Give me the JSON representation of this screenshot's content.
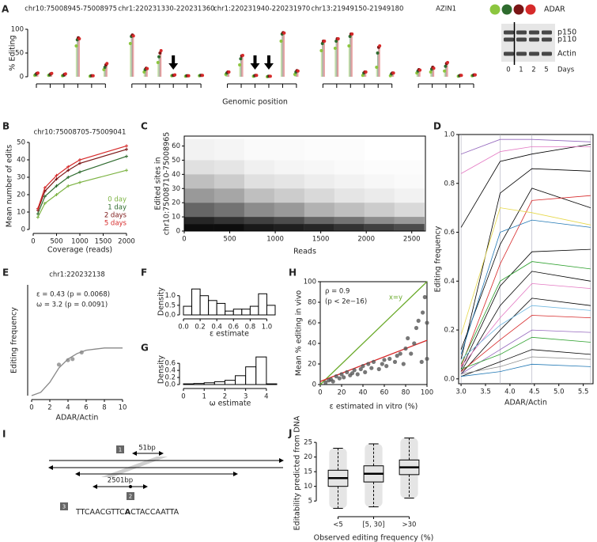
{
  "chart_data": [
    {
      "type": "lollipop",
      "panel": "A",
      "ylabel": "% Editing",
      "xlabel": "Genomic position",
      "legend_title": "ADAR",
      "colors": [
        "#8cc63f",
        "#2e6b2e",
        "#7a1515",
        "#d62a2a"
      ],
      "ylim": [
        0,
        100
      ],
      "yticks": [
        0,
        50,
        100
      ],
      "regions": [
        {
          "title": "chr10:75008945-75008975",
          "values": [
            [
              3,
              5,
              7,
              8
            ],
            [
              3,
              4,
              6,
              7
            ],
            [
              2,
              3,
              5,
              6
            ],
            [
              65,
              78,
              82,
              80
            ],
            [
              1,
              2,
              2,
              2
            ],
            [
              15,
              20,
              25,
              28
            ]
          ]
        },
        {
          "title": "chr1:220231330-220231360",
          "values": [
            [
              70,
              85,
              88,
              86
            ],
            [
              10,
              15,
              18,
              17
            ],
            [
              30,
              42,
              50,
              55
            ],
            [
              2,
              3,
              3,
              4
            ],
            [
              1,
              2,
              2,
              2
            ],
            [
              2,
              3,
              3,
              3
            ]
          ]
        },
        {
          "title": "chr1:220231940-220231970",
          "values": [
            [
              5,
              8,
              10,
              10
            ],
            [
              25,
              38,
              44,
              45
            ],
            [
              1,
              2,
              3,
              3
            ],
            [
              0,
              1,
              1,
              1
            ],
            [
              75,
              90,
              93,
              92
            ],
            [
              5,
              10,
              13,
              12
            ]
          ]
        },
        {
          "title": "chr13:21949150-21949180",
          "values": [
            [
              55,
              70,
              75,
              75
            ],
            [
              60,
              75,
              80,
              80
            ],
            [
              65,
              85,
              90,
              90
            ],
            [
              3,
              8,
              10,
              10
            ],
            [
              20,
              50,
              62,
              65
            ],
            [
              2,
              6,
              8,
              8
            ]
          ]
        },
        {
          "title": "AZIN1",
          "values": [
            [
              8,
              12,
              15,
              14
            ],
            [
              10,
              16,
              20,
              18
            ],
            [
              12,
              22,
              28,
              30
            ],
            [
              1,
              2,
              3,
              3
            ],
            [
              2,
              3,
              4,
              4
            ]
          ]
        }
      ]
    },
    {
      "type": "line",
      "panel": "B",
      "title": "chr10:75008705-75009041",
      "xlabel": "Coverage (reads)",
      "ylabel": "Mean number of edits",
      "x": [
        100,
        250,
        500,
        750,
        1000,
        2000
      ],
      "xlim": [
        0,
        2000
      ],
      "xticks": [
        0,
        500,
        1000,
        1500,
        2000
      ],
      "ylim": [
        0,
        50
      ],
      "yticks": [
        0,
        10,
        20,
        30,
        40,
        50
      ],
      "markers": true,
      "legend": "bottom-right",
      "series": [
        {
          "name": "0 day",
          "color": "#7cb342",
          "values": [
            7,
            15,
            20,
            25,
            27,
            34
          ]
        },
        {
          "name": "1 day",
          "color": "#2e6b2e",
          "values": [
            9,
            19,
            25,
            30,
            33,
            42
          ]
        },
        {
          "name": "2 days",
          "color": "#7a1515",
          "values": [
            11,
            22,
            29,
            34,
            38,
            46
          ]
        },
        {
          "name": "5 days",
          "color": "#d62a2a",
          "values": [
            12,
            24,
            31,
            36,
            40,
            48
          ]
        }
      ]
    },
    {
      "type": "heatmap",
      "panel": "C",
      "xlabel": "Reads",
      "ylabel": [
        "Edited sites in",
        "chr10:75008710-75008965"
      ],
      "frame": true,
      "xlim": [
        0,
        2650
      ],
      "xticks": [
        0,
        500,
        1000,
        1500,
        2000,
        2500
      ],
      "ylim": [
        0,
        67
      ],
      "yticks": [
        0,
        10,
        20,
        30,
        40,
        50,
        60
      ],
      "xbins": [
        0,
        330,
        660,
        990,
        1320,
        1650,
        1980,
        2310,
        2640
      ],
      "ybins": [
        0,
        5,
        10,
        20,
        30,
        40,
        50,
        65
      ],
      "values": [
        [
          0.95,
          0.95,
          0.9,
          0.88,
          0.85,
          0.8,
          0.75,
          0.7
        ],
        [
          0.85,
          0.8,
          0.75,
          0.7,
          0.6,
          0.55,
          0.45,
          0.4
        ],
        [
          0.6,
          0.55,
          0.45,
          0.4,
          0.3,
          0.25,
          0.2,
          0.15
        ],
        [
          0.4,
          0.35,
          0.25,
          0.2,
          0.15,
          0.1,
          0.08,
          0.05
        ],
        [
          0.25,
          0.2,
          0.12,
          0.1,
          0.07,
          0.05,
          0.03,
          0.02
        ],
        [
          0.12,
          0.1,
          0.06,
          0.04,
          0.03,
          0.02,
          0.01,
          0.01
        ],
        [
          0.05,
          0.04,
          0.02,
          0.02,
          0.01,
          0.01,
          0,
          0
        ]
      ]
    },
    {
      "type": "line",
      "panel": "D",
      "xlabel": "ADAR/Actin",
      "ylabel": "Editing frequency",
      "frame": true,
      "grid": "x",
      "x": [
        3.0,
        3.8,
        4.45,
        5.65
      ],
      "xlim": [
        2.95,
        5.7
      ],
      "xticks": [
        {
          "value": 3,
          "label": "3.0"
        },
        3.5,
        {
          "value": 4,
          "label": "4.0"
        },
        4.5,
        {
          "value": 5,
          "label": "5.0"
        },
        5.5
      ],
      "ylim": [
        -0.02,
        1.0
      ],
      "yticks": [
        {
          "value": 0,
          "label": "0.0"
        },
        0.2,
        0.4,
        0.6,
        0.8,
        {
          "value": 1,
          "label": "1.0"
        }
      ],
      "series": [
        {
          "color": "#000000",
          "values": [
            0.62,
            0.89,
            0.92,
            0.96
          ]
        },
        {
          "color": "#000000",
          "values": [
            0.08,
            0.76,
            0.86,
            0.85
          ]
        },
        {
          "color": "#e377c2",
          "values": [
            0.84,
            0.93,
            0.95,
            0.95
          ]
        },
        {
          "color": "#9467bd",
          "values": [
            0.92,
            0.98,
            0.98,
            0.97
          ]
        },
        {
          "color": "#000000",
          "values": [
            0.12,
            0.55,
            0.78,
            0.7
          ]
        },
        {
          "color": "#d62728",
          "values": [
            0.05,
            0.47,
            0.73,
            0.75
          ]
        },
        {
          "color": "#e6d84a",
          "values": [
            0.18,
            0.7,
            0.68,
            0.63
          ]
        },
        {
          "color": "#1f77b4",
          "values": [
            0.1,
            0.6,
            0.65,
            0.62
          ]
        },
        {
          "color": "#000000",
          "values": [
            0.04,
            0.38,
            0.52,
            0.53
          ]
        },
        {
          "color": "#2ca02c",
          "values": [
            0.06,
            0.4,
            0.48,
            0.45
          ]
        },
        {
          "color": "#000000",
          "values": [
            0.03,
            0.3,
            0.44,
            0.4
          ]
        },
        {
          "color": "#e377c2",
          "values": [
            0.05,
            0.25,
            0.39,
            0.37
          ]
        },
        {
          "color": "#000000",
          "values": [
            0.02,
            0.2,
            0.33,
            0.3
          ]
        },
        {
          "color": "#6fb7e0",
          "values": [
            0.08,
            0.22,
            0.3,
            0.28
          ]
        },
        {
          "color": "#d62728",
          "values": [
            0.03,
            0.16,
            0.26,
            0.25
          ]
        },
        {
          "color": "#9467bd",
          "values": [
            0.02,
            0.12,
            0.2,
            0.19
          ]
        },
        {
          "color": "#2ca02c",
          "values": [
            0.04,
            0.1,
            0.17,
            0.15
          ]
        },
        {
          "color": "#000000",
          "values": [
            0.01,
            0.07,
            0.12,
            0.1
          ]
        },
        {
          "color": "#888888",
          "values": [
            0.02,
            0.05,
            0.09,
            0.08
          ]
        },
        {
          "color": "#1f77b4",
          "values": [
            0.01,
            0.03,
            0.06,
            0.05
          ]
        }
      ]
    },
    {
      "type": "scatter",
      "panel": "E",
      "title": "chr1:220232138",
      "xlabel": "ADAR/Actin",
      "ylabel": "Editing frequency",
      "annotations": [
        "ε = 0.43 (p = 0.0068)",
        "ω = 3.2 (p = 0.0091)"
      ],
      "xlim": [
        0,
        10
      ],
      "xticks": [
        0,
        2,
        4,
        6,
        8,
        10
      ],
      "ylim": [
        0,
        1
      ],
      "color": "#888888",
      "x": [
        3,
        4,
        4.5,
        5.5
      ],
      "values": [
        0.28,
        0.32,
        0.33,
        0.39
      ],
      "lines": [
        {
          "color": "#888888",
          "x": [
            0,
            1,
            2,
            3,
            4,
            5,
            6,
            7,
            8,
            9,
            10
          ],
          "values": [
            0,
            0.03,
            0.12,
            0.25,
            0.33,
            0.38,
            0.41,
            0.42,
            0.43,
            0.43,
            0.43
          ]
        }
      ]
    },
    {
      "type": "histogram",
      "panel": "F",
      "xlabel": "ε estimate",
      "ylabel": "Density",
      "bins": [
        0,
        0.1,
        0.2,
        0.3,
        0.4,
        0.5,
        0.6,
        0.7,
        0.8,
        0.9,
        1.0,
        1.1
      ],
      "values": [
        0.45,
        1.35,
        1.0,
        0.75,
        0.6,
        0.2,
        0.3,
        0.3,
        0.45,
        1.1,
        0.5
      ],
      "xlim": [
        0,
        1.1
      ],
      "xticks": [
        {
          "value": 0,
          "label": "0.0"
        },
        0.2,
        0.4,
        0.6,
        0.8,
        {
          "value": 1,
          "label": "1.0"
        }
      ],
      "ylim": [
        0,
        1.4
      ],
      "yticks": [
        {
          "value": 0,
          "label": "0.0"
        },
        0.5,
        {
          "value": 1,
          "label": "1.0"
        }
      ]
    },
    {
      "type": "histogram",
      "panel": "G",
      "xlabel": "ω estimate",
      "ylabel": "Density",
      "bins": [
        0,
        0.5,
        1,
        1.5,
        2,
        2.5,
        3,
        3.5,
        4,
        4.5
      ],
      "values": [
        0.02,
        0.03,
        0.05,
        0.08,
        0.12,
        0.25,
        0.5,
        0.78,
        0.02
      ],
      "xlim": [
        0,
        4.5
      ],
      "xticks": [
        0,
        1,
        2,
        3,
        4
      ],
      "ylim": [
        0,
        0.85
      ],
      "yticks": [
        {
          "value": 0,
          "label": "0.0"
        },
        0.2,
        0.4,
        0.6
      ]
    },
    {
      "type": "scatter",
      "panel": "H",
      "xlabel": "ε estimated in vitro (%)",
      "ylabel": "Mean % editing in vivo",
      "frame": true,
      "annotations": [
        "ρ = 0.9",
        "(p < 2e−16)"
      ],
      "color": "#555555",
      "xlim": [
        0,
        100
      ],
      "xticks": [
        0,
        20,
        40,
        60,
        80,
        100
      ],
      "ylim": [
        0,
        100
      ],
      "yticks": [
        0,
        20,
        40,
        60,
        80,
        100
      ],
      "x": [
        5,
        8,
        10,
        12,
        15,
        18,
        20,
        22,
        25,
        28,
        30,
        32,
        35,
        38,
        40,
        42,
        45,
        48,
        50,
        55,
        58,
        60,
        62,
        65,
        70,
        72,
        75,
        78,
        80,
        82,
        85,
        88,
        90,
        92,
        95,
        96,
        98,
        100,
        100
      ],
      "values": [
        2,
        4,
        5,
        3,
        8,
        6,
        10,
        7,
        12,
        9,
        11,
        14,
        10,
        15,
        18,
        12,
        20,
        16,
        22,
        15,
        20,
        24,
        18,
        25,
        22,
        28,
        30,
        20,
        35,
        45,
        30,
        40,
        55,
        62,
        22,
        70,
        85,
        25,
        60
      ],
      "lines": [
        {
          "label": "x=y",
          "color": "#6aaa2a",
          "x": [
            0,
            100
          ],
          "values": [
            0,
            100
          ]
        },
        {
          "color": "#d62728",
          "x": [
            0,
            100
          ],
          "values": [
            3,
            43
          ]
        }
      ]
    },
    {
      "type": "box",
      "panel": "J",
      "xlabel": "Observed editing frequency (%)",
      "ylabel": "Editability predicted from DNA",
      "categories": [
        "<5",
        "[5, 30]",
        ">30"
      ],
      "ylim": [
        1,
        28
      ],
      "yticks": [
        5,
        10,
        15,
        20,
        25
      ],
      "whislo": [
        2.5,
        3,
        6
      ],
      "q1": [
        10,
        11.5,
        14
      ],
      "median": [
        12.8,
        14.3,
        16.5
      ],
      "q3": [
        15.5,
        17,
        19
      ],
      "whishi": [
        23,
        24.5,
        26.5
      ]
    }
  ],
  "blot": {
    "bands": [
      "p150",
      "p110",
      "Actin"
    ],
    "days": [
      "0",
      "1",
      "2",
      "5"
    ],
    "days_title": "Days"
  },
  "diagram": {
    "panel": "I",
    "boxes": [
      "1",
      "2",
      "3"
    ],
    "short_span": "51bp",
    "long_span": "2501bp",
    "sequence": [
      "TTCAACGTTC",
      "A",
      "CTACCAATTA"
    ]
  }
}
